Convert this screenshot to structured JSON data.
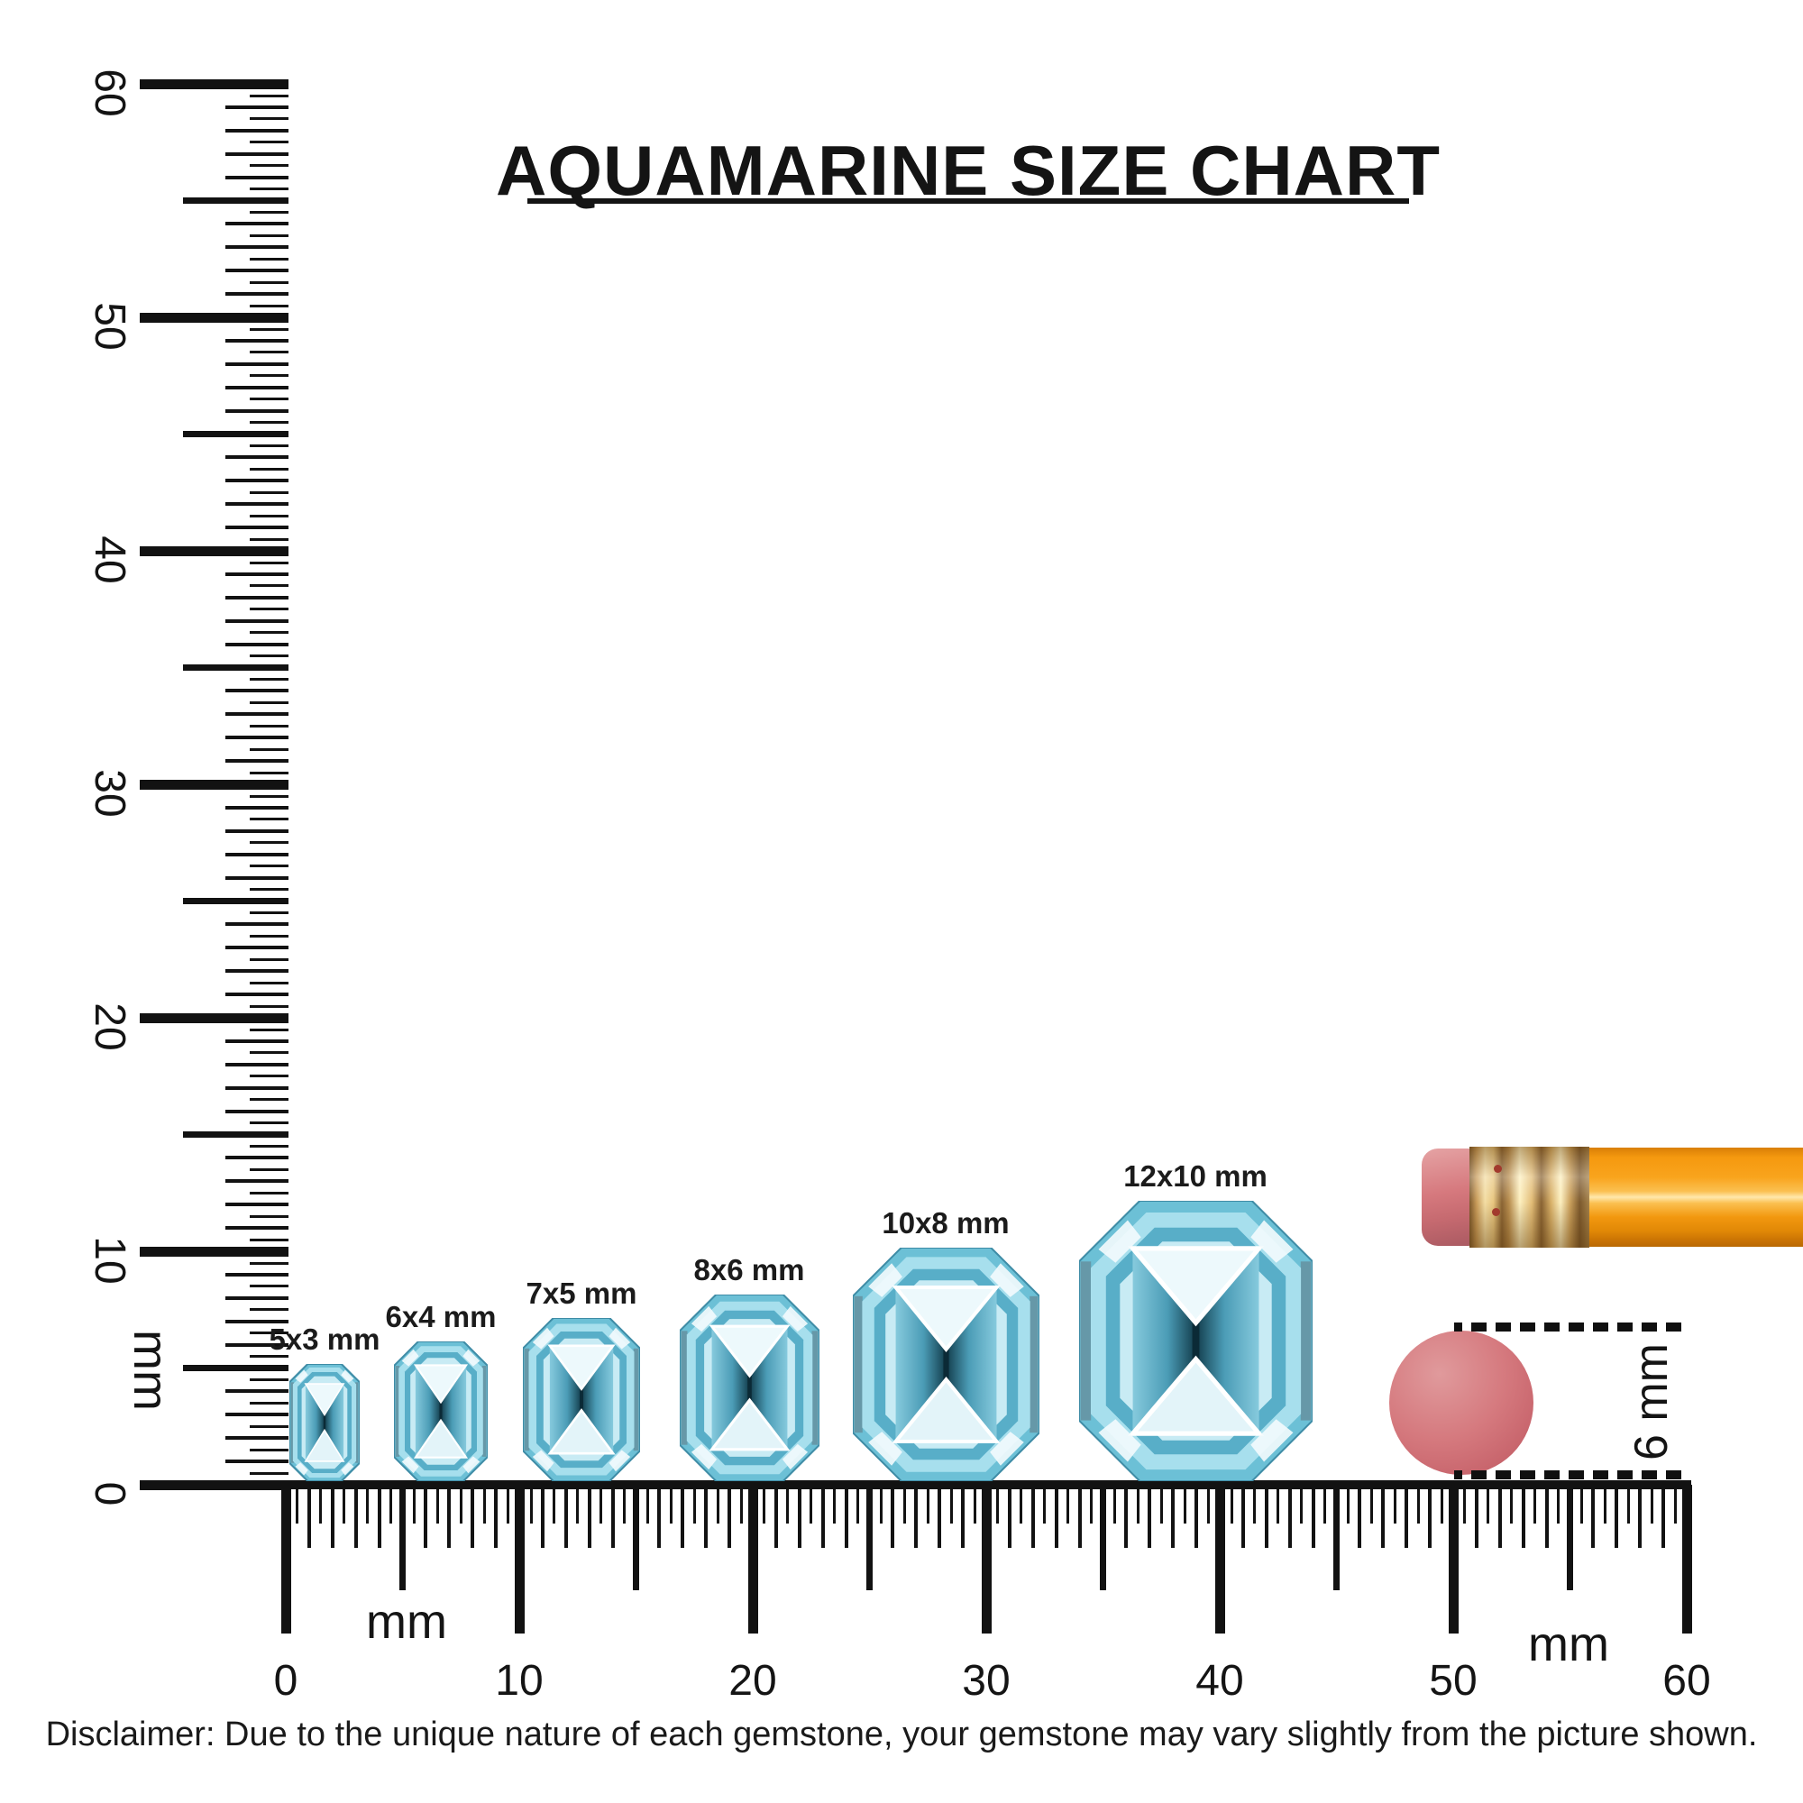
{
  "title": {
    "text": "AQUAMARINE SIZE CHART"
  },
  "chart_data": {
    "type": "table",
    "title": "AQUAMARINE SIZE CHART",
    "unit": "mm",
    "gem_cut": "emerald (octagon) aquamarine, top view",
    "sizes": [
      {
        "label": "5x3 mm",
        "length_mm": 5,
        "width_mm": 3
      },
      {
        "label": "6x4 mm",
        "length_mm": 6,
        "width_mm": 4
      },
      {
        "label": "7x5 mm",
        "length_mm": 7,
        "width_mm": 5
      },
      {
        "label": "8x6 mm",
        "length_mm": 8,
        "width_mm": 6
      },
      {
        "label": "10x8 mm",
        "length_mm": 10,
        "width_mm": 8
      },
      {
        "label": "12x10 mm",
        "length_mm": 12,
        "width_mm": 10
      }
    ],
    "rulers": {
      "horizontal_range_mm": [
        0,
        60
      ],
      "vertical_range_mm": [
        0,
        60
      ],
      "tick_step_mm": 0.5,
      "label_step_mm": 10,
      "unit": "mm"
    },
    "reference_objects": [
      {
        "name": "pencil with eraser (side view)"
      },
      {
        "name": "pencil eraser (top view)",
        "diameter_label": "6 mm"
      }
    ]
  },
  "rulers": {
    "vertical": {
      "unit_label": "mm",
      "tick_labels": [
        "0",
        "10",
        "20",
        "30",
        "40",
        "50",
        "60"
      ]
    },
    "horizontal": {
      "unit_label_left": "mm",
      "unit_label_right": "mm",
      "tick_labels": [
        "0",
        "10",
        "20",
        "30",
        "40",
        "50",
        "60"
      ]
    }
  },
  "gems": [
    {
      "label": "5x3 mm",
      "w_mm": 3,
      "h_mm": 5
    },
    {
      "label": "6x4 mm",
      "w_mm": 4,
      "h_mm": 6
    },
    {
      "label": "7x5 mm",
      "w_mm": 5,
      "h_mm": 7
    },
    {
      "label": "8x6 mm",
      "w_mm": 6,
      "h_mm": 8
    },
    {
      "label": "10x8 mm",
      "w_mm": 8,
      "h_mm": 10
    },
    {
      "label": "12x10 mm",
      "w_mm": 10,
      "h_mm": 12
    }
  ],
  "measurement": {
    "label": "6 mm"
  },
  "disclaimer": {
    "text": "Disclaimer: Due to the unique nature of each gemstone, your gemstone may vary slightly from the picture shown."
  },
  "palette": {
    "ink": "#121212",
    "gem_rim": "#6cc0d6",
    "gem_rim_dark": "#3f8ca6",
    "gem_band_light": "#a7dfed",
    "gem_band_mid": "#58aec8",
    "gem_table": "#c8ebf4",
    "gem_tri_top": "#edf9fc",
    "gem_tri_bottom": "#e3f4f9",
    "gem_side_light": "#86cadd",
    "gem_side_mid": "#4b9cb6",
    "gem_side_dark": "#123c4b",
    "gem_seam": "#0b2a36",
    "gem_gray_shadow": "#5f707a",
    "pencil_orange": "#f5990f",
    "ferrule_gold": "#e3bd77",
    "eraser_pink": "#d5797e"
  }
}
